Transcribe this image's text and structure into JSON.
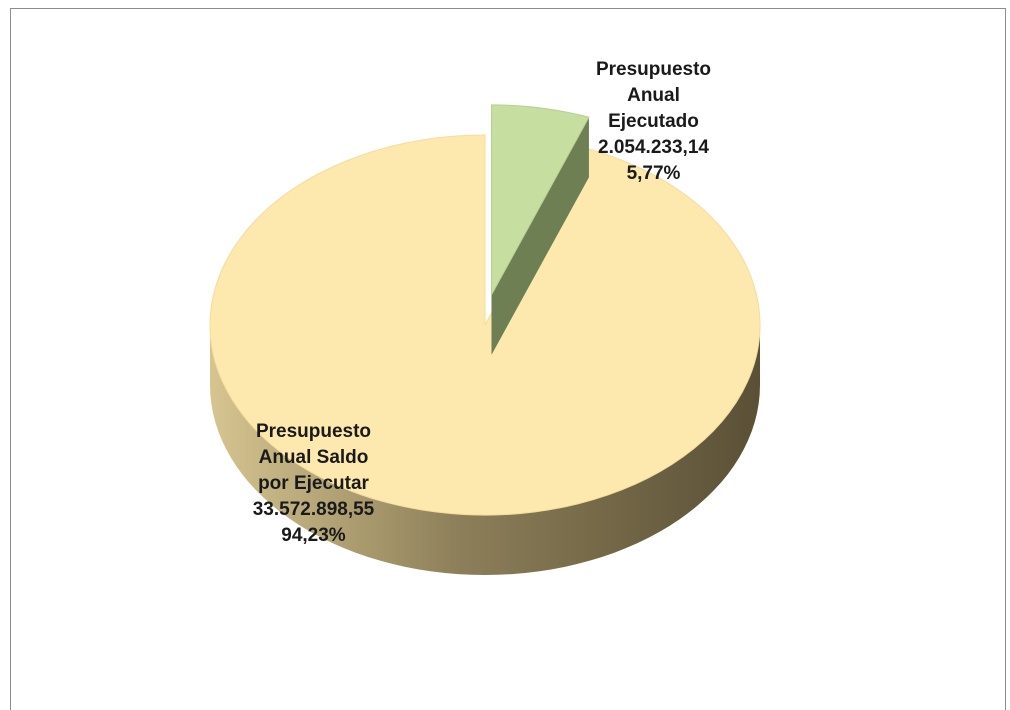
{
  "chart_data": {
    "type": "pie",
    "title": "",
    "categories": [
      "Presupuesto Anual Ejecutado",
      "Presupuesto Anual Saldo por Ejecutar"
    ],
    "values": [
      2054233.14,
      33572898.55
    ],
    "percentages": [
      "5,77%",
      "94,23%"
    ],
    "slices": [
      {
        "name": "Presupuesto Anual Ejecutado",
        "value": 2054233.14,
        "value_label": "2.054.233,14",
        "percent_label": "5,77%",
        "label_lines": [
          "Presupuesto",
          "Anual",
          "Ejecutado"
        ],
        "color": "#c6dea0",
        "exploded": true
      },
      {
        "name": "Presupuesto Anual Saldo por Ejecutar",
        "value": 33572898.55,
        "value_label": "33.572.898,55",
        "percent_label": "94,23%",
        "label_lines": [
          "Presupuesto",
          "Anual Saldo",
          "por Ejecutar"
        ],
        "color": "#fde9ad",
        "exploded": false
      }
    ],
    "style": "3d",
    "legend": "none"
  },
  "colors": {
    "saldo_top": "#fde9ad",
    "saldo_side_light": "#d1bf8a",
    "saldo_side_dark": "#5e5438",
    "ejecutado_top": "#c6dea0",
    "ejecutado_side": "#6d7f53",
    "frame_border": "#8c8c8c"
  }
}
